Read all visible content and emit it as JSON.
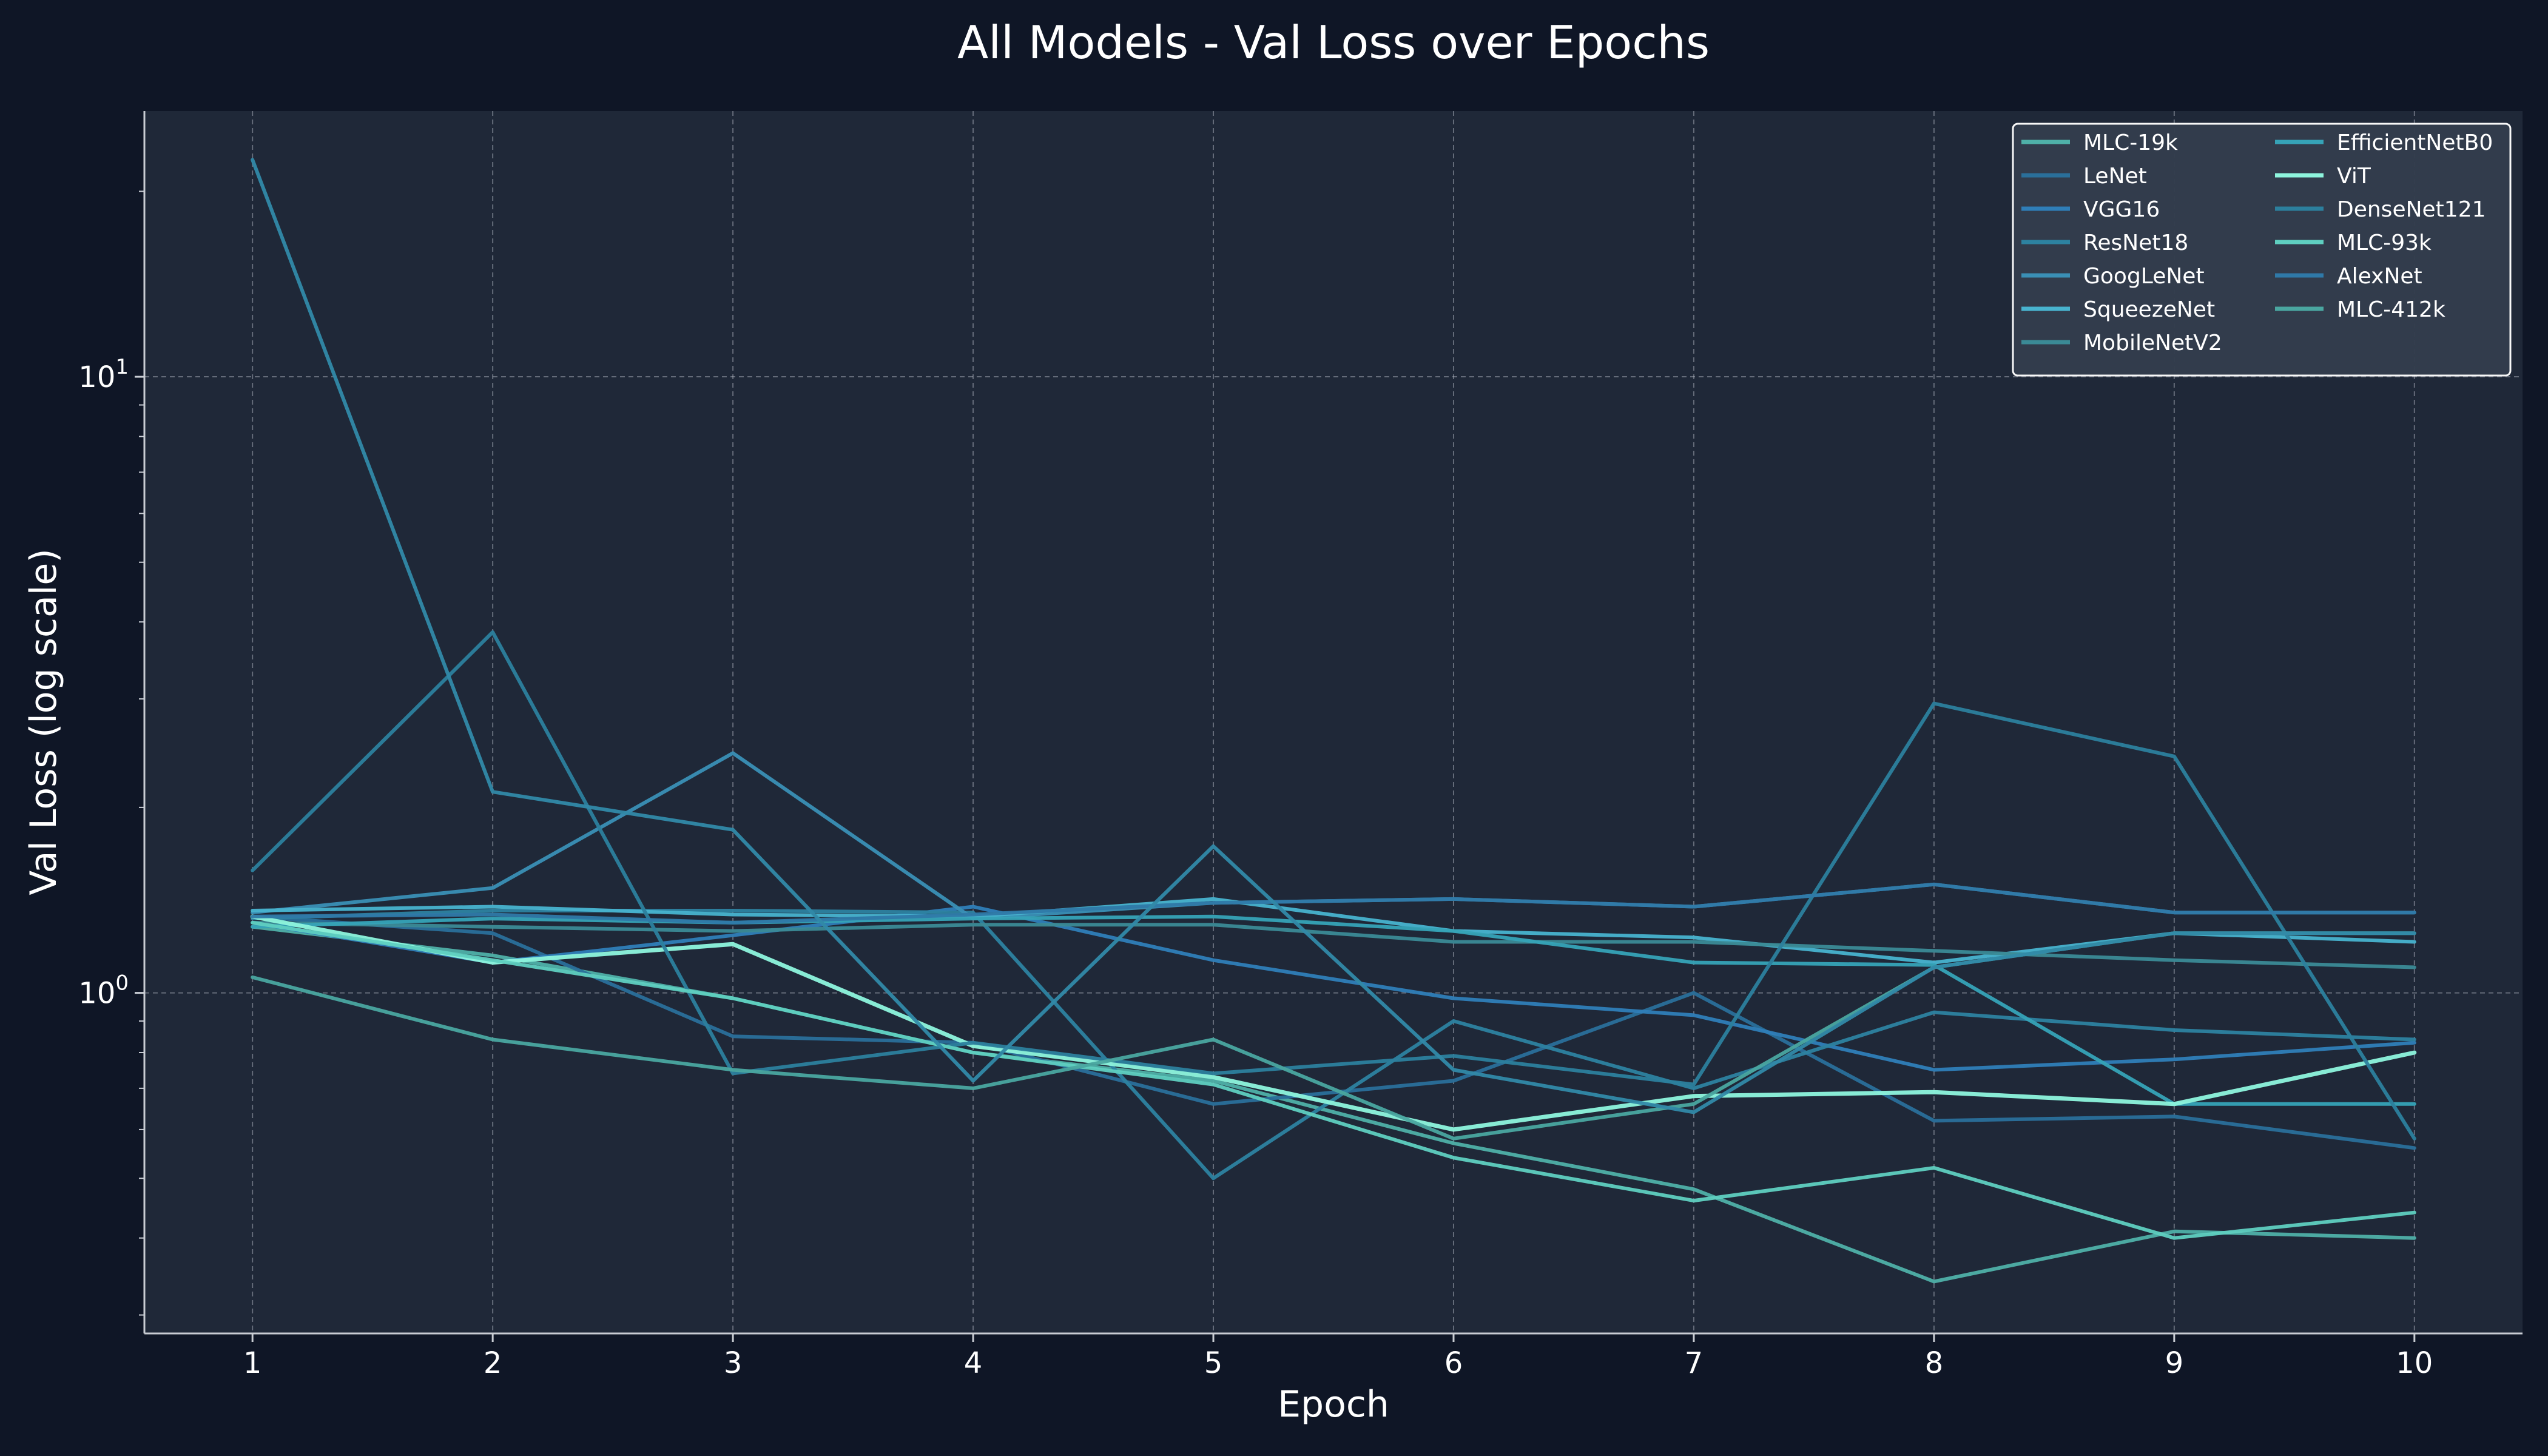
{
  "chart_data": {
    "type": "line",
    "title": "All Models - Val Loss over Epochs",
    "xlabel": "Epoch",
    "ylabel": "Val Loss (log scale)",
    "y_scale": "log",
    "ylim": [
      0.28,
      27
    ],
    "xlim": [
      0.55,
      10.45
    ],
    "x": [
      1,
      2,
      3,
      4,
      5,
      6,
      7,
      8,
      9,
      10
    ],
    "x_ticks": [
      "1",
      "2",
      "3",
      "4",
      "5",
      "6",
      "7",
      "8",
      "9",
      "10"
    ],
    "y_ticks": [
      {
        "value": 1,
        "base": "10",
        "exp": "0"
      },
      {
        "value": 10,
        "base": "10",
        "exp": "1"
      }
    ],
    "grid": true,
    "legend_position": "top-right",
    "legend_columns": 2,
    "colors": {
      "background": "#0f1626",
      "plot_background": "#1f2838",
      "legend_background": "#333d4d"
    },
    "series": [
      {
        "name": "MLC-19k",
        "color": "#4fb0a8",
        "values": [
          1.28,
          1.15,
          0.98,
          0.8,
          0.72,
          0.57,
          0.48,
          0.34,
          0.41,
          0.4
        ]
      },
      {
        "name": "LeNet",
        "color": "#2a6f9a",
        "values": [
          1.33,
          1.25,
          0.85,
          0.83,
          0.66,
          0.72,
          1.0,
          0.62,
          0.63,
          0.56
        ]
      },
      {
        "name": "VGG16",
        "color": "#2f7eb8",
        "values": [
          1.3,
          1.12,
          1.24,
          1.38,
          1.13,
          0.98,
          0.92,
          0.75,
          0.78,
          0.83
        ]
      },
      {
        "name": "ResNet18",
        "color": "#2d82a0",
        "values": [
          1.32,
          1.36,
          1.36,
          1.35,
          0.5,
          0.9,
          0.7,
          0.93,
          0.87,
          0.84
        ]
      },
      {
        "name": "GoogLeNet",
        "color": "#3a8fb5",
        "values": [
          1.35,
          1.48,
          2.45,
          1.32,
          1.4,
          1.42,
          1.38,
          1.5,
          1.35,
          1.35
        ]
      },
      {
        "name": "SqueezeNet",
        "color": "#48b3cf",
        "values": [
          1.36,
          1.38,
          1.34,
          1.33,
          1.42,
          1.26,
          1.23,
          1.12,
          1.25,
          1.21
        ]
      },
      {
        "name": "MobileNetV2",
        "color": "#3b8a96",
        "values": [
          1.3,
          1.28,
          1.26,
          1.29,
          1.29,
          1.21,
          1.21,
          1.17,
          1.13,
          1.1
        ]
      },
      {
        "name": "EfficientNetB0",
        "color": "#36a3b7",
        "values": [
          1.28,
          1.32,
          1.3,
          1.32,
          1.33,
          1.26,
          1.12,
          1.11,
          0.66,
          0.66
        ]
      },
      {
        "name": "ViT",
        "color": "#8ef5dd",
        "values": [
          1.33,
          1.12,
          1.2,
          0.82,
          0.73,
          0.6,
          0.68,
          0.69,
          0.66,
          0.8
        ]
      },
      {
        "name": "DenseNet121",
        "color": "#2c7f9d",
        "values": [
          1.58,
          3.85,
          0.74,
          0.83,
          0.74,
          0.79,
          0.71,
          2.95,
          2.42,
          0.58
        ]
      },
      {
        "name": "MLC-93k",
        "color": "#5fcfc0",
        "values": [
          1.3,
          1.13,
          0.98,
          0.8,
          0.71,
          0.54,
          0.46,
          0.52,
          0.4,
          0.44
        ]
      },
      {
        "name": "AlexNet",
        "color": "#2f79a8",
        "values": [
          1.33,
          1.34,
          1.3,
          1.34,
          1.4,
          1.42,
          1.38,
          1.5,
          1.35,
          1.35
        ]
      },
      {
        "name": "MLC-412k",
        "color": "#4aa6a0",
        "values": [
          1.06,
          0.84,
          0.75,
          0.7,
          0.84,
          0.58,
          0.66,
          1.1,
          1.25,
          1.25
        ]
      },
      {
        "name": "",
        "color": "#3189a8",
        "values": [
          22.5,
          2.12,
          1.84,
          0.72,
          1.73,
          0.75,
          0.64,
          1.1,
          1.25,
          1.25
        ]
      }
    ]
  }
}
